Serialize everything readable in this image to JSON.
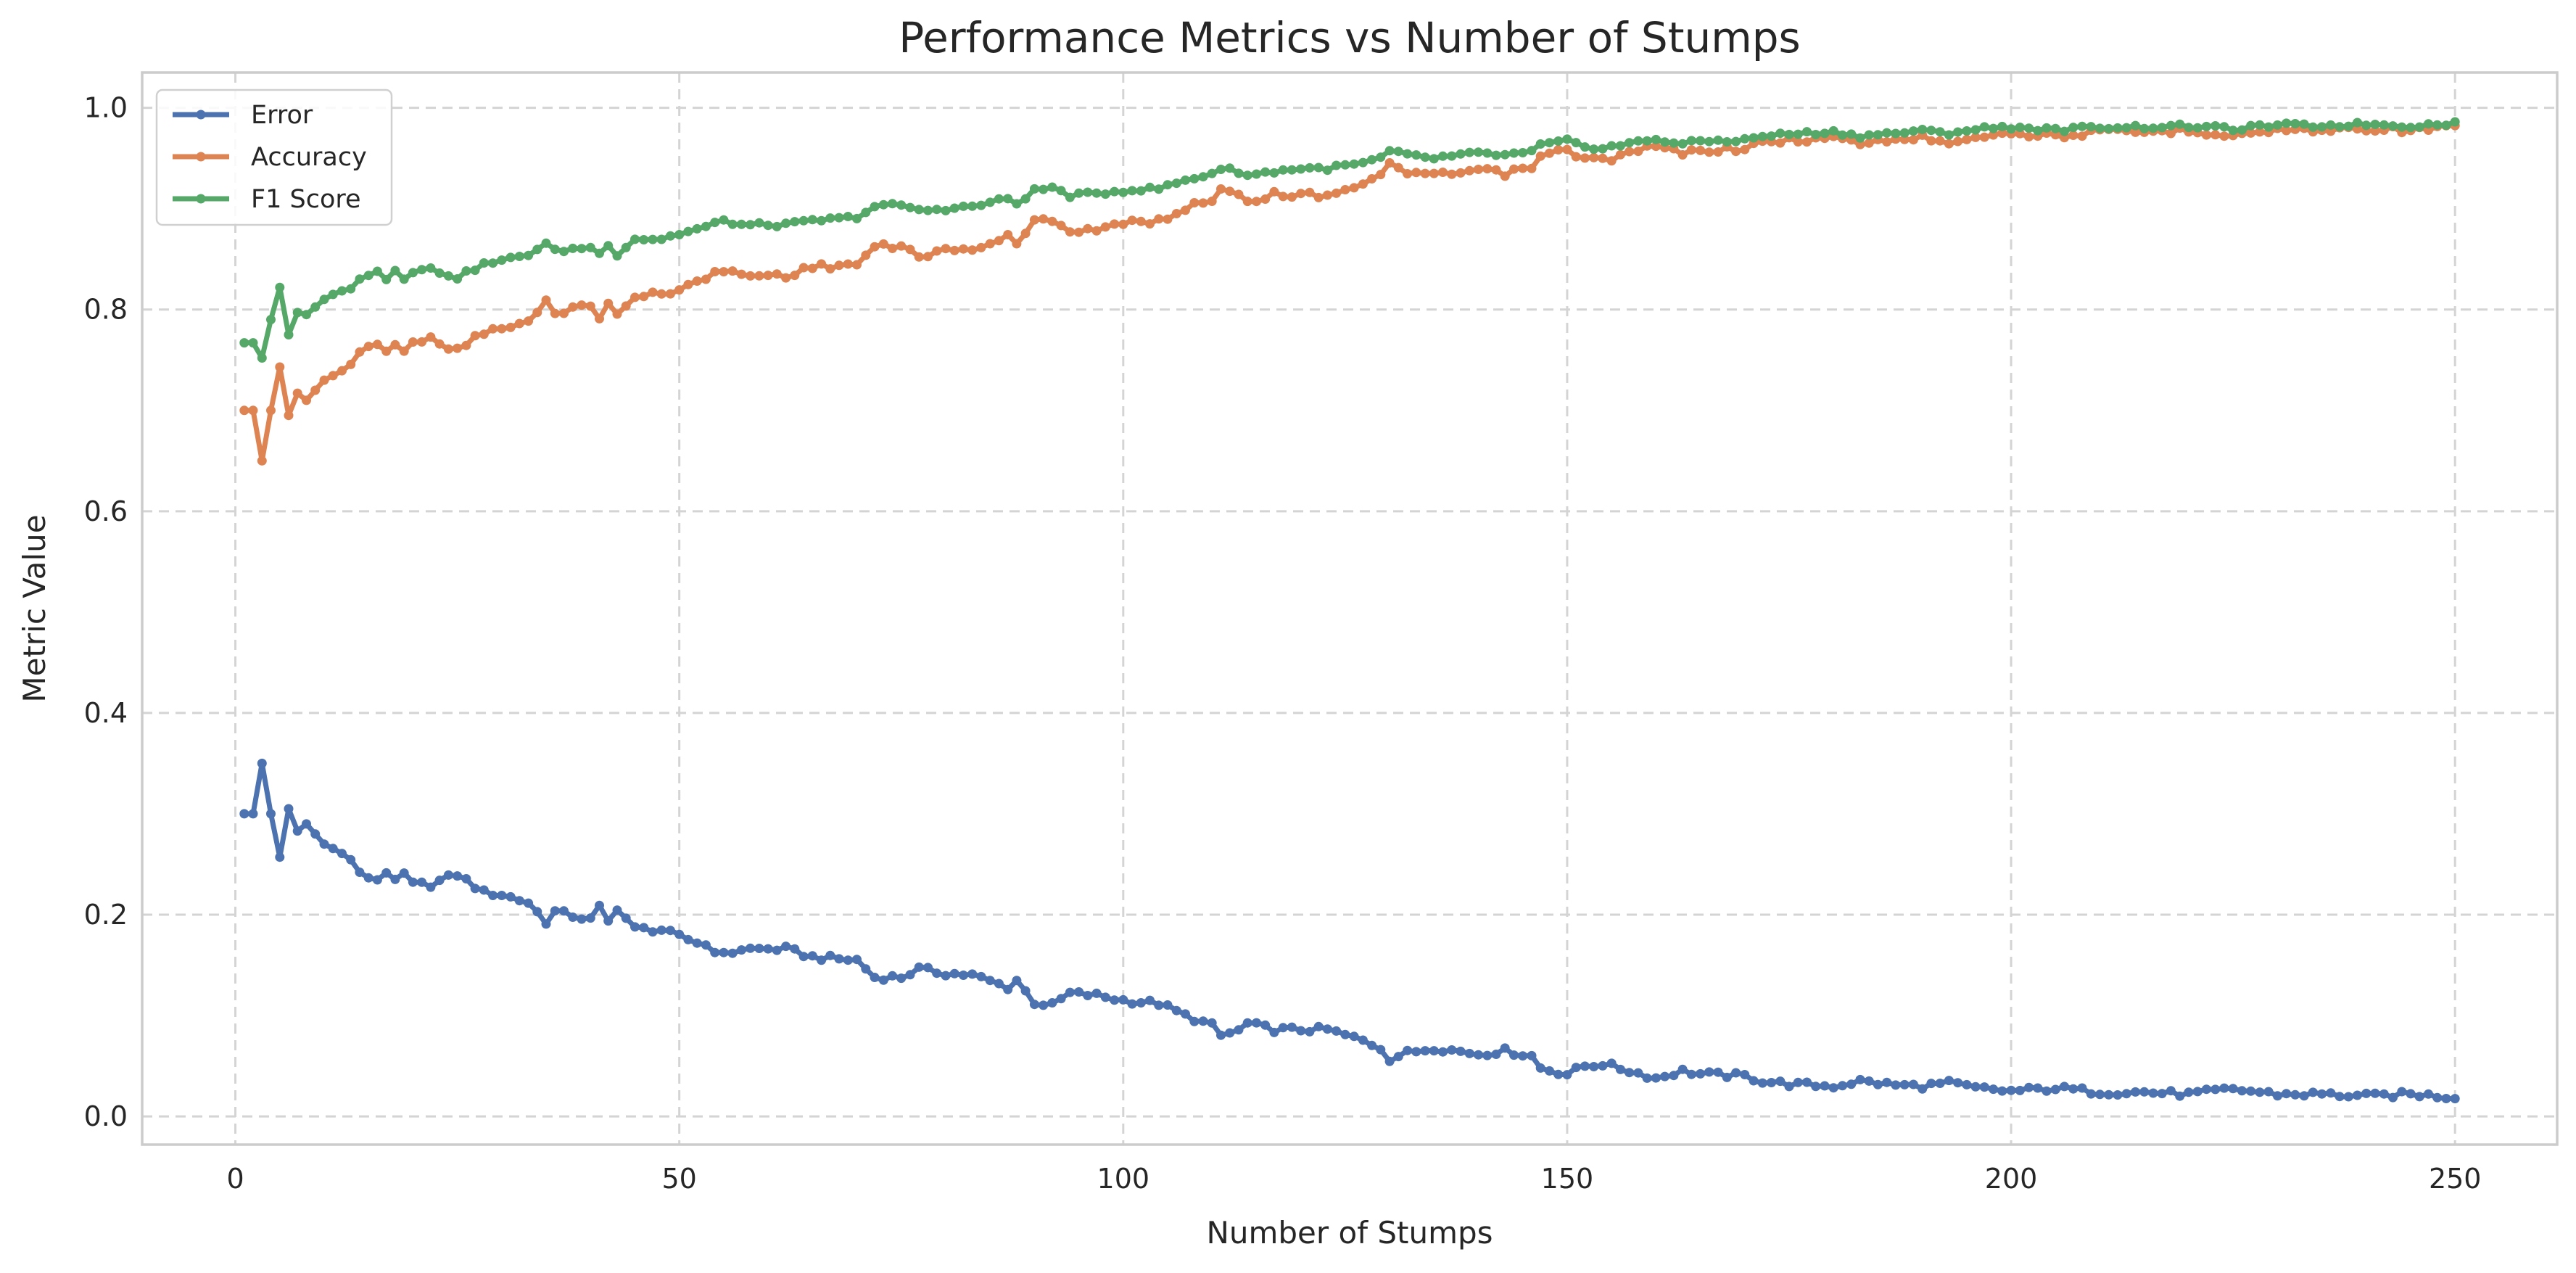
{
  "chart_data": {
    "type": "line",
    "title": "Performance Metrics vs Number of Stumps",
    "xlabel": "Number of Stumps",
    "ylabel": "Metric Value",
    "xlim": [
      -10.5,
      261.5
    ],
    "ylim": [
      -0.028,
      1.035
    ],
    "xticks": [
      0,
      50,
      100,
      150,
      200,
      250
    ],
    "yticks": [
      0.0,
      0.2,
      0.4,
      0.6,
      0.8,
      1.0
    ],
    "xtick_labels": [
      "0",
      "50",
      "100",
      "150",
      "200",
      "250"
    ],
    "ytick_labels": [
      "0.0",
      "0.2",
      "0.4",
      "0.6",
      "0.8",
      "1.0"
    ],
    "grid": true,
    "legend_position": "top-left",
    "x_start": 1,
    "x_step": 1,
    "series": [
      {
        "name": "Error",
        "color": "#4c72b0",
        "anchors": [
          [
            1,
            0.3
          ],
          [
            2,
            0.3
          ],
          [
            3,
            0.35
          ],
          [
            4,
            0.3
          ],
          [
            5,
            0.257
          ],
          [
            6,
            0.305
          ],
          [
            7,
            0.283
          ],
          [
            8,
            0.29
          ],
          [
            10,
            0.27
          ],
          [
            13,
            0.255
          ],
          [
            14,
            0.24
          ],
          [
            16,
            0.235
          ],
          [
            17,
            0.243
          ],
          [
            18,
            0.232
          ],
          [
            19,
            0.24
          ],
          [
            20,
            0.23
          ],
          [
            22,
            0.23
          ],
          [
            25,
            0.24
          ],
          [
            28,
            0.222
          ],
          [
            30,
            0.22
          ],
          [
            33,
            0.212
          ],
          [
            35,
            0.193
          ],
          [
            36,
            0.203
          ],
          [
            40,
            0.195
          ],
          [
            41,
            0.207
          ],
          [
            42,
            0.193
          ],
          [
            43,
            0.207
          ],
          [
            45,
            0.186
          ],
          [
            48,
            0.185
          ],
          [
            50,
            0.178
          ],
          [
            53,
            0.17
          ],
          [
            55,
            0.16
          ],
          [
            57,
            0.166
          ],
          [
            62,
            0.166
          ],
          [
            65,
            0.158
          ],
          [
            68,
            0.156
          ],
          [
            70,
            0.155
          ],
          [
            72,
            0.138
          ],
          [
            75,
            0.138
          ],
          [
            77,
            0.146
          ],
          [
            80,
            0.142
          ],
          [
            83,
            0.14
          ],
          [
            87,
            0.128
          ],
          [
            88,
            0.135
          ],
          [
            90,
            0.113
          ],
          [
            92,
            0.11
          ],
          [
            94,
            0.122
          ],
          [
            97,
            0.12
          ],
          [
            100,
            0.115
          ],
          [
            104,
            0.112
          ],
          [
            107,
            0.1
          ],
          [
            110,
            0.09
          ],
          [
            111,
            0.08
          ],
          [
            113,
            0.085
          ],
          [
            114,
            0.092
          ],
          [
            117,
            0.086
          ],
          [
            120,
            0.086
          ],
          [
            123,
            0.086
          ],
          [
            127,
            0.075
          ],
          [
            129,
            0.068
          ],
          [
            130,
            0.057
          ],
          [
            132,
            0.063
          ],
          [
            135,
            0.068
          ],
          [
            140,
            0.062
          ],
          [
            143,
            0.065
          ],
          [
            146,
            0.06
          ],
          [
            147,
            0.048
          ],
          [
            150,
            0.042
          ],
          [
            152,
            0.05
          ],
          [
            154,
            0.052
          ],
          [
            158,
            0.043
          ],
          [
            160,
            0.038
          ],
          [
            163,
            0.045
          ],
          [
            165,
            0.042
          ],
          [
            170,
            0.04
          ],
          [
            172,
            0.035
          ],
          [
            175,
            0.032
          ],
          [
            180,
            0.03
          ],
          [
            183,
            0.035
          ],
          [
            187,
            0.031
          ],
          [
            190,
            0.03
          ],
          [
            193,
            0.033
          ],
          [
            196,
            0.028
          ],
          [
            200,
            0.025
          ],
          [
            205,
            0.028
          ],
          [
            210,
            0.024
          ],
          [
            215,
            0.024
          ],
          [
            220,
            0.022
          ],
          [
            225,
            0.027
          ],
          [
            230,
            0.022
          ],
          [
            235,
            0.022
          ],
          [
            240,
            0.02
          ],
          [
            245,
            0.022
          ],
          [
            250,
            0.019
          ]
        ]
      },
      {
        "name": "Accuracy",
        "color": "#dd8452",
        "anchors": [
          [
            1,
            0.7
          ],
          [
            2,
            0.7
          ],
          [
            3,
            0.65
          ],
          [
            4,
            0.7
          ],
          [
            5,
            0.743
          ],
          [
            6,
            0.695
          ],
          [
            7,
            0.717
          ],
          [
            8,
            0.71
          ],
          [
            10,
            0.73
          ],
          [
            13,
            0.745
          ],
          [
            14,
            0.76
          ],
          [
            16,
            0.765
          ],
          [
            17,
            0.757
          ],
          [
            18,
            0.768
          ],
          [
            19,
            0.76
          ],
          [
            20,
            0.77
          ],
          [
            22,
            0.77
          ],
          [
            25,
            0.76
          ],
          [
            28,
            0.778
          ],
          [
            30,
            0.78
          ],
          [
            33,
            0.788
          ],
          [
            35,
            0.807
          ],
          [
            36,
            0.797
          ],
          [
            40,
            0.805
          ],
          [
            41,
            0.793
          ],
          [
            42,
            0.807
          ],
          [
            43,
            0.793
          ],
          [
            45,
            0.814
          ],
          [
            48,
            0.815
          ],
          [
            50,
            0.822
          ],
          [
            53,
            0.83
          ],
          [
            55,
            0.84
          ],
          [
            57,
            0.834
          ],
          [
            62,
            0.834
          ],
          [
            65,
            0.842
          ],
          [
            68,
            0.844
          ],
          [
            70,
            0.845
          ],
          [
            72,
            0.862
          ],
          [
            75,
            0.862
          ],
          [
            77,
            0.854
          ],
          [
            80,
            0.858
          ],
          [
            83,
            0.86
          ],
          [
            87,
            0.872
          ],
          [
            88,
            0.865
          ],
          [
            90,
            0.887
          ],
          [
            92,
            0.89
          ],
          [
            94,
            0.878
          ],
          [
            97,
            0.88
          ],
          [
            100,
            0.885
          ],
          [
            104,
            0.888
          ],
          [
            107,
            0.9
          ],
          [
            110,
            0.91
          ],
          [
            111,
            0.92
          ],
          [
            113,
            0.915
          ],
          [
            114,
            0.908
          ],
          [
            117,
            0.914
          ],
          [
            120,
            0.914
          ],
          [
            123,
            0.914
          ],
          [
            127,
            0.925
          ],
          [
            129,
            0.932
          ],
          [
            130,
            0.943
          ],
          [
            132,
            0.937
          ],
          [
            135,
            0.932
          ],
          [
            140,
            0.938
          ],
          [
            143,
            0.935
          ],
          [
            146,
            0.94
          ],
          [
            147,
            0.952
          ],
          [
            150,
            0.958
          ],
          [
            152,
            0.95
          ],
          [
            154,
            0.948
          ],
          [
            158,
            0.957
          ],
          [
            160,
            0.962
          ],
          [
            163,
            0.955
          ],
          [
            165,
            0.958
          ],
          [
            170,
            0.96
          ],
          [
            172,
            0.965
          ],
          [
            175,
            0.968
          ],
          [
            180,
            0.97
          ],
          [
            183,
            0.965
          ],
          [
            187,
            0.969
          ],
          [
            190,
            0.97
          ],
          [
            193,
            0.967
          ],
          [
            196,
            0.972
          ],
          [
            200,
            0.975
          ],
          [
            205,
            0.972
          ],
          [
            210,
            0.976
          ],
          [
            215,
            0.976
          ],
          [
            220,
            0.978
          ],
          [
            225,
            0.973
          ],
          [
            230,
            0.978
          ],
          [
            235,
            0.978
          ],
          [
            240,
            0.98
          ],
          [
            245,
            0.978
          ],
          [
            250,
            0.981
          ]
        ]
      },
      {
        "name": "F1 Score",
        "color": "#55a868",
        "anchors": [
          [
            1,
            0.767
          ],
          [
            2,
            0.767
          ],
          [
            3,
            0.752
          ],
          [
            4,
            0.79
          ],
          [
            5,
            0.822
          ],
          [
            6,
            0.775
          ],
          [
            7,
            0.797
          ],
          [
            8,
            0.795
          ],
          [
            10,
            0.81
          ],
          [
            13,
            0.822
          ],
          [
            14,
            0.832
          ],
          [
            16,
            0.838
          ],
          [
            17,
            0.83
          ],
          [
            18,
            0.84
          ],
          [
            19,
            0.832
          ],
          [
            20,
            0.838
          ],
          [
            22,
            0.84
          ],
          [
            25,
            0.832
          ],
          [
            28,
            0.845
          ],
          [
            30,
            0.848
          ],
          [
            33,
            0.855
          ],
          [
            35,
            0.865
          ],
          [
            36,
            0.858
          ],
          [
            40,
            0.862
          ],
          [
            41,
            0.855
          ],
          [
            42,
            0.865
          ],
          [
            43,
            0.855
          ],
          [
            45,
            0.87
          ],
          [
            48,
            0.87
          ],
          [
            50,
            0.875
          ],
          [
            53,
            0.882
          ],
          [
            55,
            0.888
          ],
          [
            57,
            0.884
          ],
          [
            62,
            0.884
          ],
          [
            65,
            0.888
          ],
          [
            68,
            0.89
          ],
          [
            70,
            0.892
          ],
          [
            72,
            0.902
          ],
          [
            75,
            0.904
          ],
          [
            77,
            0.898
          ],
          [
            80,
            0.9
          ],
          [
            83,
            0.902
          ],
          [
            87,
            0.91
          ],
          [
            88,
            0.905
          ],
          [
            90,
            0.918
          ],
          [
            92,
            0.921
          ],
          [
            94,
            0.913
          ],
          [
            97,
            0.915
          ],
          [
            100,
            0.918
          ],
          [
            104,
            0.92
          ],
          [
            107,
            0.928
          ],
          [
            110,
            0.935
          ],
          [
            111,
            0.94
          ],
          [
            113,
            0.937
          ],
          [
            114,
            0.933
          ],
          [
            117,
            0.937
          ],
          [
            120,
            0.94
          ],
          [
            123,
            0.94
          ],
          [
            127,
            0.945
          ],
          [
            129,
            0.95
          ],
          [
            130,
            0.957
          ],
          [
            132,
            0.953
          ],
          [
            135,
            0.95
          ],
          [
            140,
            0.955
          ],
          [
            143,
            0.953
          ],
          [
            146,
            0.956
          ],
          [
            147,
            0.963
          ],
          [
            150,
            0.967
          ],
          [
            152,
            0.962
          ],
          [
            154,
            0.96
          ],
          [
            158,
            0.966
          ],
          [
            160,
            0.969
          ],
          [
            163,
            0.964
          ],
          [
            165,
            0.967
          ],
          [
            170,
            0.968
          ],
          [
            172,
            0.972
          ],
          [
            175,
            0.974
          ],
          [
            180,
            0.976
          ],
          [
            183,
            0.972
          ],
          [
            187,
            0.975
          ],
          [
            190,
            0.977
          ],
          [
            193,
            0.975
          ],
          [
            196,
            0.979
          ],
          [
            200,
            0.981
          ],
          [
            205,
            0.978
          ],
          [
            210,
            0.981
          ],
          [
            215,
            0.981
          ],
          [
            220,
            0.982
          ],
          [
            225,
            0.979
          ],
          [
            230,
            0.983
          ],
          [
            235,
            0.982
          ],
          [
            240,
            0.984
          ],
          [
            245,
            0.982
          ],
          [
            250,
            0.985
          ]
        ]
      }
    ]
  }
}
